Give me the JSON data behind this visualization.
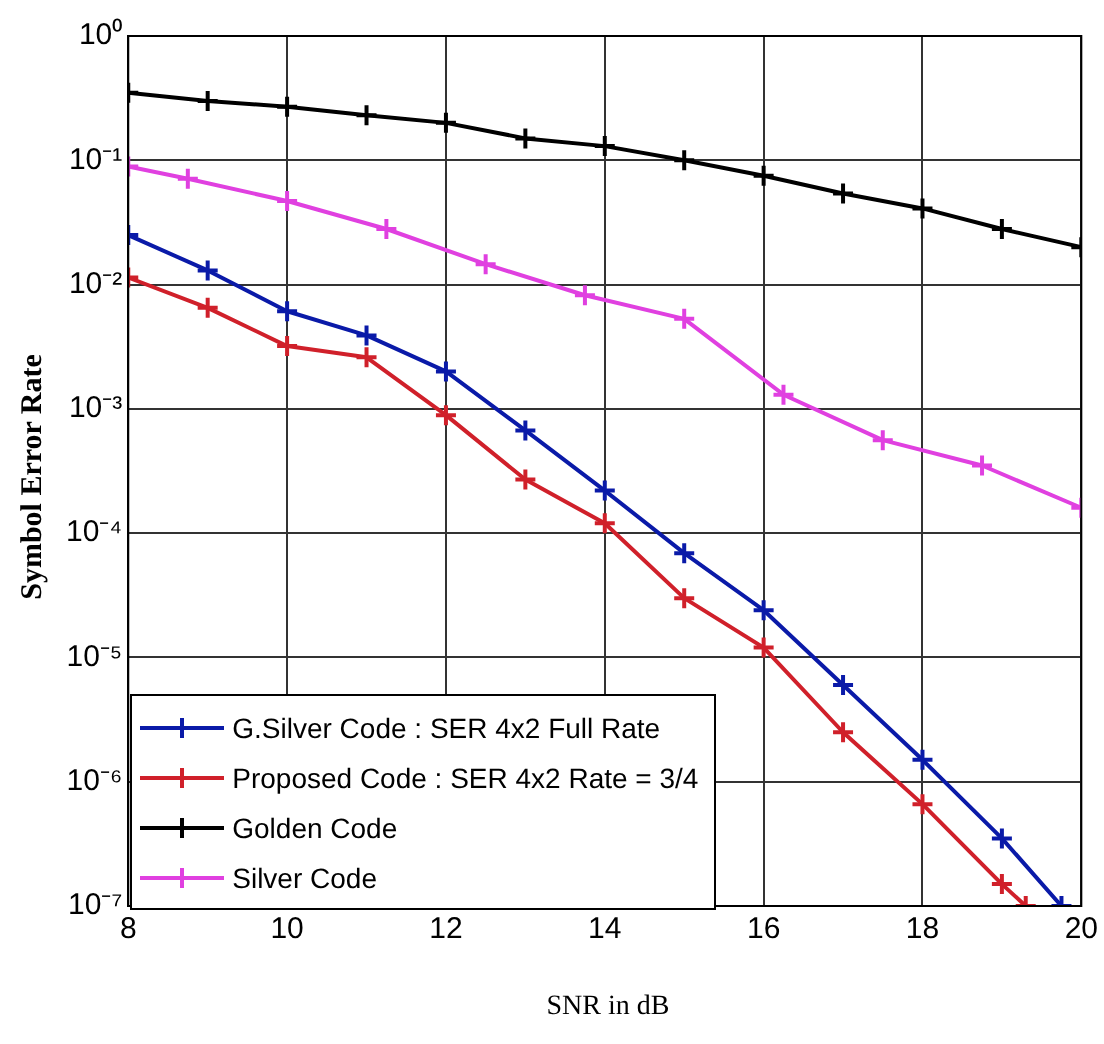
{
  "chart_data": {
    "type": "line",
    "xlabel": "SNR in dB",
    "ylabel": "Symbol Error Rate",
    "log": "y",
    "grid": true,
    "legend": "bottom left",
    "marker": "cross",
    "line_style": "solid",
    "xlim": [
      8,
      20
    ],
    "xticks": [
      8,
      10,
      12,
      14,
      16,
      18,
      20
    ],
    "ylim": [
      1e-07,
      1
    ],
    "yticks": [
      {
        "value": 1e-07,
        "label": "10⁻⁷"
      },
      {
        "value": 1e-06,
        "label": "10⁻⁶"
      },
      {
        "value": 1e-05,
        "label": "10⁻⁵"
      },
      {
        "value": 0.0001,
        "label": "10⁻⁴"
      },
      {
        "value": 0.001,
        "label": "10⁻³"
      },
      {
        "value": 0.01,
        "label": "10⁻²"
      },
      {
        "value": 0.1,
        "label": "10⁻¹"
      },
      {
        "value": 1,
        "label": "10⁰"
      }
    ],
    "series": [
      {
        "name": "G.Silver Code : SER 4x2 Full Rate",
        "color": "#0a1aa8",
        "x": [
          8,
          9,
          10,
          11,
          12,
          13,
          14,
          15,
          16,
          17,
          18,
          19,
          19.75
        ],
        "values": [
          0.025,
          0.013,
          0.0061,
          0.0039,
          0.002,
          0.00067,
          0.00022,
          6.9e-05,
          2.4e-05,
          6e-06,
          1.5e-06,
          3.5e-07,
          1e-07
        ]
      },
      {
        "name": "Proposed Code : SER 4x2 Rate = 3/4",
        "color": "#d0202a",
        "x": [
          8,
          9,
          10,
          11,
          12,
          13,
          14,
          15,
          16,
          17,
          18,
          19,
          19.3
        ],
        "values": [
          0.0114,
          0.0065,
          0.0032,
          0.0026,
          0.00089,
          0.00027,
          0.00012,
          3e-05,
          1.2e-05,
          2.5e-06,
          6.6e-07,
          1.5e-07,
          1e-07
        ]
      },
      {
        "name": "Golden Code",
        "color": "#000000",
        "x": [
          8,
          9,
          10,
          11,
          12,
          13,
          14,
          15,
          16,
          17,
          18,
          19,
          20
        ],
        "values": [
          0.35,
          0.3,
          0.27,
          0.23,
          0.2,
          0.15,
          0.13,
          0.1,
          0.075,
          0.054,
          0.041,
          0.028,
          0.02
        ]
      },
      {
        "name": "Silver Code",
        "color": "#e040e0",
        "x": [
          8,
          8.75,
          10,
          11.25,
          12.5,
          13.75,
          15,
          16.25,
          17.5,
          18.75,
          20
        ],
        "values": [
          0.089,
          0.071,
          0.047,
          0.028,
          0.0146,
          0.0082,
          0.0053,
          0.0013,
          0.00056,
          0.00035,
          0.00016
        ]
      }
    ]
  }
}
